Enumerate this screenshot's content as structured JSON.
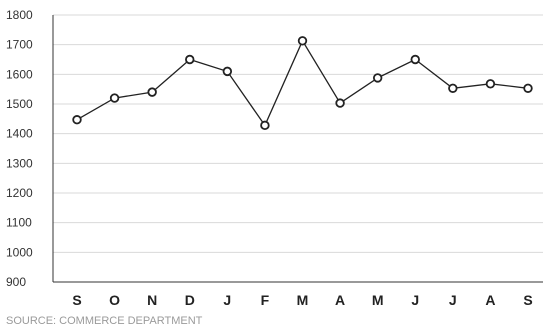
{
  "chart_data": {
    "type": "line",
    "categories": [
      "S",
      "O",
      "N",
      "D",
      "J",
      "F",
      "M",
      "A",
      "M",
      "J",
      "J",
      "A",
      "S"
    ],
    "series": [
      {
        "values": [
          1447,
          1520,
          1540,
          1650,
          1610,
          1428,
          1713,
          1503,
          1588,
          1650,
          1553,
          1568,
          1553
        ]
      }
    ],
    "y_ticks": [
      900,
      1000,
      1100,
      1200,
      1300,
      1400,
      1500,
      1600,
      1700,
      1800
    ],
    "ylim": [
      900,
      1800
    ],
    "grid": true,
    "title": "",
    "xlabel": "",
    "ylabel": "",
    "source": "SOURCE: COMMERCE DEPARTMENT",
    "colors": {
      "line": "#222222",
      "gridline": "#d9d9d9",
      "source_text": "#9a9a9a"
    }
  }
}
